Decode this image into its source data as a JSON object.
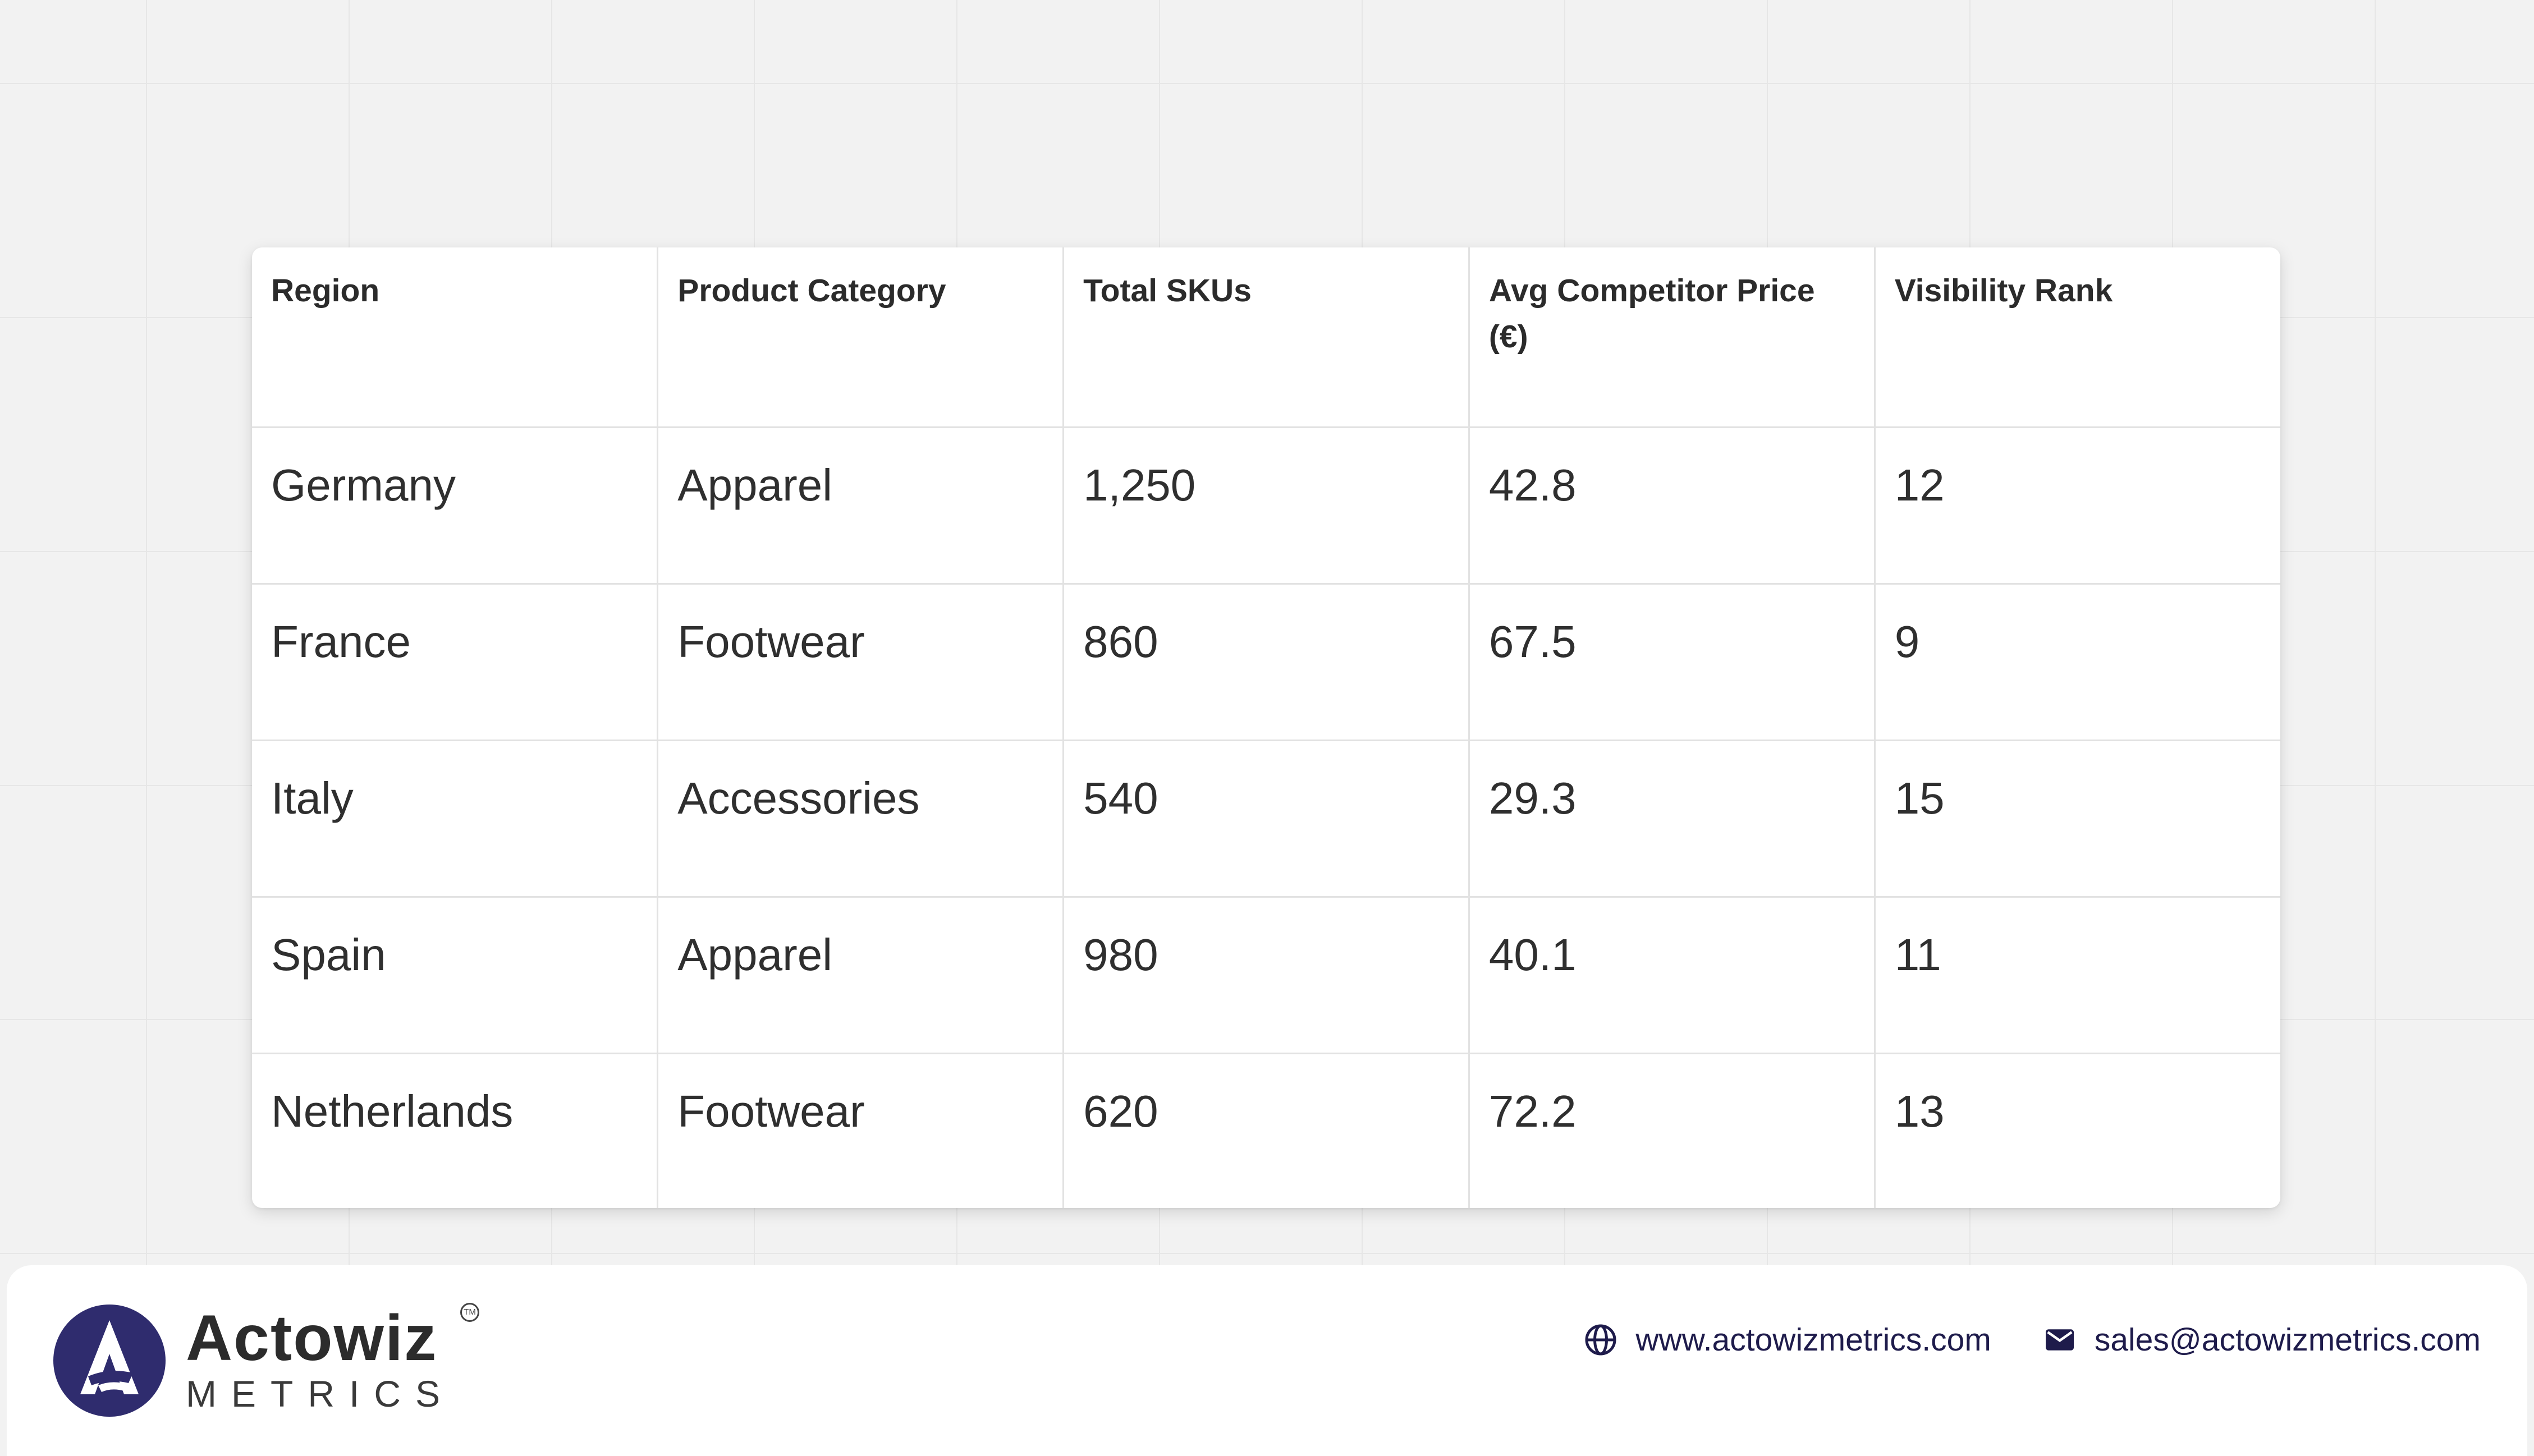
{
  "table": {
    "headers": [
      "Region",
      "Product Category",
      "Total SKUs",
      "Avg Competitor Price (€)",
      "Visibility Rank"
    ],
    "rows": [
      [
        "Germany",
        "Apparel",
        "1,250",
        "42.8",
        "12"
      ],
      [
        "France",
        "Footwear",
        "860",
        "67.5",
        "9"
      ],
      [
        "Italy",
        "Accessories",
        "540",
        "29.3",
        "15"
      ],
      [
        "Spain",
        "Apparel",
        "980",
        "40.1",
        "11"
      ],
      [
        "Netherlands",
        "Footwear",
        "620",
        "72.2",
        "13"
      ]
    ]
  },
  "footer": {
    "brand": {
      "name": "Actowiz",
      "sub": "METRICS",
      "tm": "TM"
    },
    "website": "www.actowizmetrics.com",
    "email": "sales@actowizmetrics.com",
    "icons": {
      "website": "globe-icon",
      "email": "mail-icon"
    }
  },
  "colors": {
    "accent": "#2f2c6e",
    "background": "#f2f2f2",
    "card": "#ffffff"
  }
}
